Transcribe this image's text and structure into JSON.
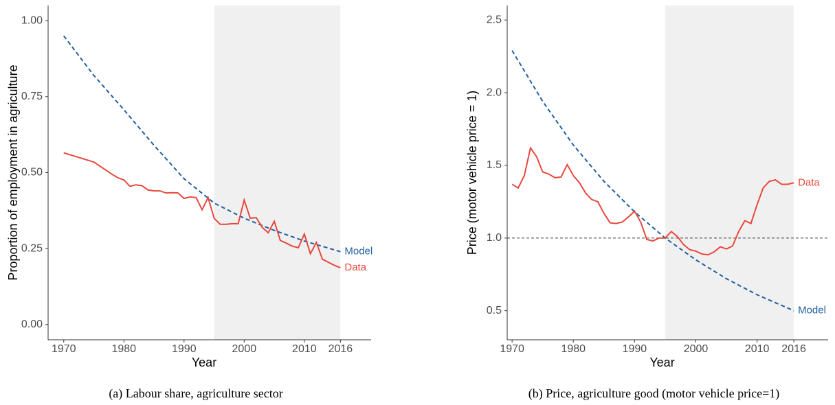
{
  "chart_data": [
    {
      "type": "line",
      "caption": "(a) Labour share, agriculture sector",
      "x_label": "Year",
      "y_label": "Proportion of employment in agriculture",
      "xlim": [
        1967.4,
        2021.1
      ],
      "ylim": [
        -0.05,
        1.05
      ],
      "xticks": [
        1970,
        1980,
        1990,
        2000,
        2010,
        2016
      ],
      "yticks": [
        {
          "value": 0,
          "label": "0.00"
        },
        {
          "value": 0.25,
          "label": "0.25"
        },
        {
          "value": 0.5,
          "label": "0.50"
        },
        {
          "value": 0.75,
          "label": "0.75"
        },
        {
          "value": 1,
          "label": "1.00"
        }
      ],
      "shade": [
        1995,
        2016
      ],
      "series": [
        {
          "name": "Model",
          "color": "#1f5fa0",
          "dashed": true,
          "x": [
            1970,
            1975,
            1980,
            1985,
            1990,
            1995,
            2000,
            2005,
            2010,
            2016
          ],
          "values": [
            0.95,
            0.82,
            0.707,
            0.59,
            0.48,
            0.4,
            0.35,
            0.31,
            0.275,
            0.24
          ]
        },
        {
          "name": "Data",
          "color": "#e8473c",
          "dashed": false,
          "x": [
            1970,
            1975,
            1978,
            1979,
            1980,
            1981,
            1982,
            1983,
            1984,
            1985,
            1986,
            1987,
            1988,
            1989,
            1990,
            1991,
            1992,
            1993,
            1994,
            1995,
            1996,
            1997,
            1998,
            1999,
            2000,
            2001,
            2002,
            2003,
            2004,
            2005,
            2006,
            2007,
            2008,
            2009,
            2010,
            2011,
            2012,
            2013,
            2014,
            2015,
            2016
          ],
          "values": [
            0.565,
            0.535,
            0.495,
            0.483,
            0.476,
            0.455,
            0.46,
            0.457,
            0.443,
            0.44,
            0.44,
            0.433,
            0.434,
            0.433,
            0.415,
            0.42,
            0.418,
            0.378,
            0.418,
            0.35,
            0.33,
            0.33,
            0.332,
            0.332,
            0.41,
            0.35,
            0.352,
            0.32,
            0.302,
            0.34,
            0.277,
            0.268,
            0.258,
            0.253,
            0.298,
            0.233,
            0.27,
            0.215,
            0.205,
            0.195,
            0.187
          ]
        }
      ]
    },
    {
      "type": "line",
      "caption": "(b) Price, agriculture good (motor vehicle price=1)",
      "x_label": "Year",
      "y_label": "Price (motor vehicle price = 1)",
      "xlim": [
        1969.2,
        2021.6
      ],
      "ylim": [
        0.3,
        2.6
      ],
      "xticks": [
        1970,
        1980,
        1990,
        2000,
        2010,
        2016
      ],
      "yticks": [
        0.5,
        {
          "value": 1,
          "label": "1.0"
        },
        1.5,
        {
          "value": 2,
          "label": "2.0"
        },
        2.5
      ],
      "shade": [
        1995,
        2016
      ],
      "hline": 1,
      "series": [
        {
          "name": "Model",
          "color": "#1f5fa0",
          "dashed": true,
          "x": [
            1970,
            1975,
            1980,
            1985,
            1990,
            1995,
            2000,
            2005,
            2010,
            2016
          ],
          "values": [
            2.29,
            1.94,
            1.64,
            1.39,
            1.18,
            1.0,
            0.85,
            0.72,
            0.61,
            0.5
          ]
        },
        {
          "name": "Data",
          "color": "#e8473c",
          "dashed": false,
          "x": [
            1970,
            1971,
            1972,
            1973,
            1974,
            1975,
            1976,
            1977,
            1978,
            1979,
            1980,
            1981,
            1982,
            1983,
            1984,
            1985,
            1986,
            1987,
            1988,
            1989,
            1990,
            1991,
            1992,
            1993,
            1994,
            1995,
            1996,
            1997,
            1998,
            1999,
            2000,
            2001,
            2002,
            2003,
            2004,
            2005,
            2006,
            2007,
            2008,
            2009,
            2010,
            2011,
            2012,
            2013,
            2014,
            2015,
            2016
          ],
          "values": [
            1.37,
            1.345,
            1.43,
            1.62,
            1.56,
            1.455,
            1.44,
            1.415,
            1.42,
            1.505,
            1.43,
            1.38,
            1.31,
            1.265,
            1.25,
            1.17,
            1.105,
            1.1,
            1.11,
            1.145,
            1.185,
            1.11,
            0.99,
            0.98,
            1.0,
            1.0,
            1.045,
            1.01,
            0.955,
            0.92,
            0.91,
            0.89,
            0.885,
            0.905,
            0.94,
            0.925,
            0.945,
            1.045,
            1.12,
            1.1,
            1.23,
            1.345,
            1.39,
            1.4,
            1.37,
            1.37,
            1.38
          ]
        }
      ]
    }
  ]
}
